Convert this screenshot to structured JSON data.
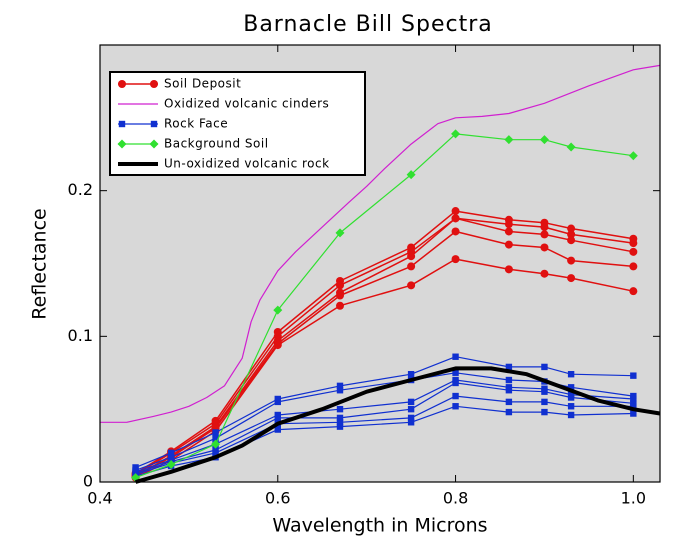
{
  "chart_data": {
    "type": "line",
    "title": "Barnacle Bill Spectra",
    "xlabel": "Wavelength in Microns",
    "ylabel": "Reflectance",
    "xlim": [
      0.4,
      1.03
    ],
    "ylim": [
      0,
      0.3
    ],
    "xticks": [
      0.4,
      0.6,
      0.8,
      {
        "value": 1,
        "label": "1.0"
      }
    ],
    "yticks": [
      0,
      0.1,
      0.2
    ],
    "legend": "upper left",
    "x": [
      0.44,
      0.48,
      0.53,
      0.6,
      0.67,
      0.75,
      0.8,
      0.86,
      0.9,
      0.93,
      1.0
    ],
    "series": [
      {
        "name": "Soil Deposit",
        "color": "#e01010",
        "marker": "circle",
        "width": 1.5,
        "lines": [
          [
            0.006,
            0.021,
            0.042,
            0.103,
            0.138,
            0.161,
            0.186,
            0.18,
            0.178,
            0.174,
            0.167
          ],
          [
            0.005,
            0.02,
            0.04,
            0.1,
            0.135,
            0.158,
            0.181,
            0.177,
            0.175,
            0.17,
            0.164
          ],
          [
            0.004,
            0.018,
            0.038,
            0.097,
            0.13,
            0.155,
            0.181,
            0.172,
            0.17,
            0.166,
            0.158
          ],
          [
            0.004,
            0.017,
            0.037,
            0.095,
            0.128,
            0.148,
            0.172,
            0.163,
            0.161,
            0.152,
            0.148
          ],
          [
            0.003,
            0.015,
            0.035,
            0.094,
            0.121,
            0.135,
            0.153,
            0.146,
            0.143,
            0.14,
            0.131
          ]
        ]
      },
      {
        "name": "Oxidized volcanic cinders",
        "color": "#d020d0",
        "marker": "none",
        "width": 1.2,
        "x": [
          0.4,
          0.43,
          0.46,
          0.48,
          0.5,
          0.52,
          0.54,
          0.56,
          0.57,
          0.58,
          0.6,
          0.62,
          0.65,
          0.68,
          0.7,
          0.72,
          0.75,
          0.78,
          0.8,
          0.83,
          0.86,
          0.9,
          0.95,
          1.0,
          1.03
        ],
        "lines": [
          [
            0.041,
            0.041,
            0.045,
            0.048,
            0.052,
            0.058,
            0.066,
            0.085,
            0.11,
            0.125,
            0.145,
            0.158,
            0.175,
            0.192,
            0.203,
            0.215,
            0.232,
            0.246,
            0.25,
            0.251,
            0.253,
            0.26,
            0.272,
            0.283,
            0.286
          ]
        ]
      },
      {
        "name": "Rock Face",
        "color": "#1030d0",
        "marker": "square",
        "width": 1.2,
        "lines": [
          [
            0.01,
            0.02,
            0.034,
            0.057,
            0.066,
            0.074,
            0.086,
            0.079,
            0.079,
            0.074,
            0.073
          ],
          [
            0.008,
            0.017,
            0.03,
            0.055,
            0.063,
            0.07,
            0.075,
            0.07,
            0.069,
            0.065,
            0.059
          ],
          [
            0.007,
            0.015,
            0.026,
            0.046,
            0.05,
            0.055,
            0.07,
            0.065,
            0.064,
            0.06,
            0.057
          ],
          [
            0.006,
            0.014,
            0.022,
            0.044,
            0.044,
            0.05,
            0.068,
            0.063,
            0.062,
            0.058,
            0.054
          ],
          [
            0.005,
            0.013,
            0.02,
            0.04,
            0.041,
            0.044,
            0.059,
            0.055,
            0.055,
            0.052,
            0.052
          ],
          [
            0.004,
            0.011,
            0.017,
            0.036,
            0.038,
            0.041,
            0.052,
            0.048,
            0.048,
            0.046,
            0.047
          ]
        ]
      },
      {
        "name": "Background Soil",
        "color": "#30e030",
        "marker": "diamond",
        "width": 1.2,
        "lines": [
          [
            0.003,
            0.012,
            0.026,
            0.118,
            0.171,
            0.211,
            0.239,
            0.235,
            0.235,
            0.23,
            0.224
          ]
        ]
      },
      {
        "name": "Un-oxidized volcanic rock",
        "color": "#000000",
        "marker": "none",
        "width": 4,
        "x": [
          0.44,
          0.48,
          0.53,
          0.56,
          0.6,
          0.65,
          0.7,
          0.75,
          0.8,
          0.84,
          0.88,
          0.92,
          0.96,
          1.0,
          1.03
        ],
        "lines": [
          [
            0.0,
            0.007,
            0.017,
            0.025,
            0.04,
            0.05,
            0.062,
            0.07,
            0.078,
            0.078,
            0.074,
            0.065,
            0.056,
            0.05,
            0.047
          ]
        ]
      }
    ]
  }
}
